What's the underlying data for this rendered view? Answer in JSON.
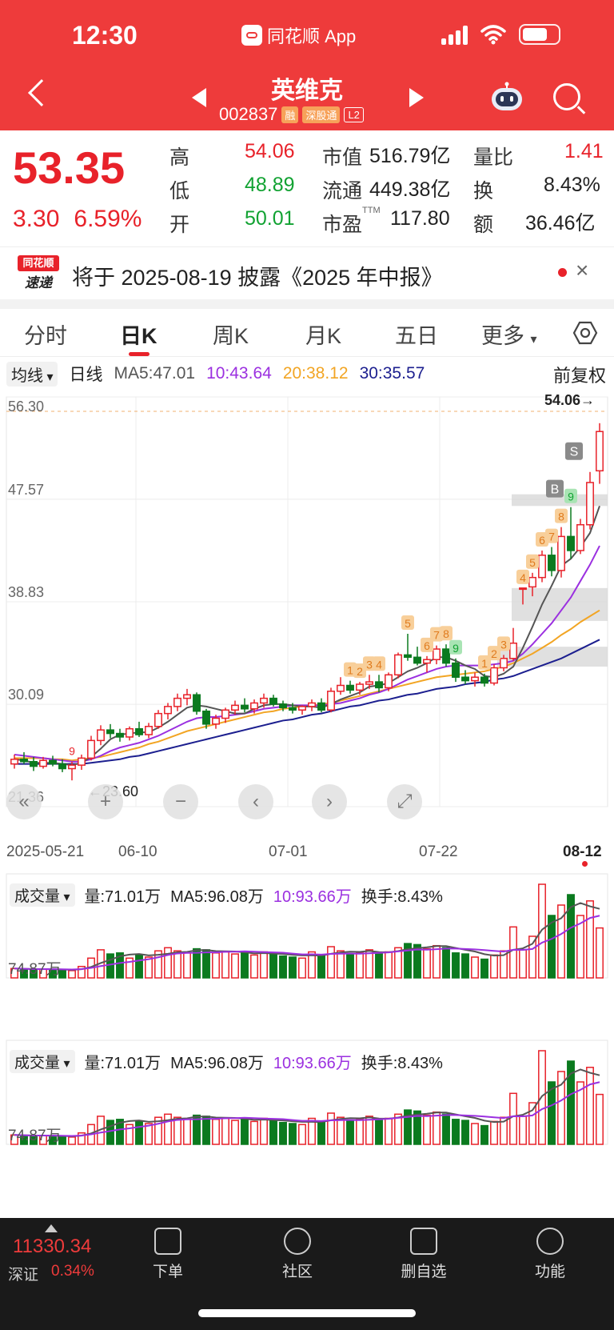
{
  "status_bar": {
    "time": "12:30",
    "app_name": "同花顺 App"
  },
  "header": {
    "stock_name": "英维克",
    "stock_code": "002837",
    "tags": [
      "融",
      "深股通",
      "L2"
    ]
  },
  "quote": {
    "price": "53.35",
    "change": "3.30",
    "change_pct": "6.59%",
    "high_label": "高",
    "high": "54.06",
    "low_label": "低",
    "low": "48.89",
    "open_label": "开",
    "open": "50.01",
    "mktcap_label": "市值",
    "mktcap": "516.79亿",
    "float_label": "流通",
    "float": "449.38亿",
    "pe_label": "市盈",
    "pe_sup": "TTM",
    "pe": "117.80",
    "volratio_label": "量比",
    "volratio": "1.41",
    "turnover_label": "换",
    "turnover": "8.43%",
    "amount_label": "额",
    "amount": "36.46亿"
  },
  "news": {
    "logo_top": "同花顺",
    "logo_bottom": "速递",
    "text": "将于 2025-08-19 披露《2025 年中报》",
    "close": "×"
  },
  "tabs": [
    "分时",
    "日K",
    "周K",
    "月K",
    "五日",
    "更多"
  ],
  "active_tab": "日K",
  "ma_row": {
    "dropdown": "均线",
    "period": "日线",
    "ma5": "MA5:47.01",
    "ma10": "10:43.64",
    "ma20": "20:38.12",
    "ma30": "30:35.57",
    "adjust": "前复权"
  },
  "colors": {
    "up": "#e8222a",
    "down": "#0b7a1f",
    "ma5": "#555555",
    "ma10": "#9b30e0",
    "ma20": "#f2a524",
    "ma30": "#1c1f8f"
  },
  "chart_data": {
    "type": "candlestick",
    "dates": [
      "2025-05-21",
      "06-10",
      "07-01",
      "07-22",
      "08-12"
    ],
    "y_ticks": [
      "56.30",
      "47.57",
      "38.83",
      "30.09",
      "21.36"
    ],
    "ylim": [
      21.36,
      56.3
    ],
    "high_label": "54.06→",
    "low_label": "←23.60",
    "ohlc": [
      [
        25.0,
        25.8,
        24.6,
        25.4
      ],
      [
        25.4,
        26.0,
        25.0,
        25.2
      ],
      [
        25.2,
        25.6,
        24.4,
        24.8
      ],
      [
        24.8,
        25.6,
        24.6,
        25.3
      ],
      [
        25.3,
        25.7,
        24.8,
        25.0
      ],
      [
        25.0,
        25.4,
        24.3,
        24.6
      ],
      [
        24.6,
        25.2,
        23.6,
        24.9
      ],
      [
        24.9,
        25.8,
        24.5,
        25.5
      ],
      [
        25.5,
        27.4,
        25.3,
        27.0
      ],
      [
        27.0,
        28.3,
        26.6,
        27.9
      ],
      [
        27.9,
        28.4,
        27.2,
        27.6
      ],
      [
        27.6,
        28.0,
        26.9,
        27.3
      ],
      [
        27.3,
        28.2,
        27.0,
        28.0
      ],
      [
        28.0,
        28.6,
        27.3,
        27.5
      ],
      [
        27.5,
        28.5,
        27.2,
        28.2
      ],
      [
        28.2,
        29.6,
        28.0,
        29.3
      ],
      [
        29.3,
        30.2,
        28.8,
        29.9
      ],
      [
        29.9,
        31.0,
        29.5,
        30.6
      ],
      [
        30.6,
        31.4,
        30.0,
        30.9
      ],
      [
        30.9,
        31.1,
        29.2,
        29.5
      ],
      [
        29.5,
        29.7,
        28.0,
        28.4
      ],
      [
        28.4,
        29.2,
        28.0,
        28.9
      ],
      [
        28.9,
        29.8,
        28.5,
        29.6
      ],
      [
        29.6,
        30.4,
        29.2,
        30.0
      ],
      [
        30.0,
        30.6,
        29.4,
        29.7
      ],
      [
        29.7,
        30.5,
        29.3,
        30.2
      ],
      [
        30.2,
        31.0,
        29.8,
        30.6
      ],
      [
        30.6,
        30.9,
        29.9,
        30.1
      ],
      [
        30.1,
        30.4,
        29.5,
        29.8
      ],
      [
        29.8,
        30.2,
        29.3,
        29.6
      ],
      [
        29.6,
        30.0,
        29.2,
        29.9
      ],
      [
        29.9,
        30.5,
        29.5,
        30.2
      ],
      [
        30.2,
        30.6,
        29.4,
        29.6
      ],
      [
        29.6,
        31.5,
        29.4,
        31.2
      ],
      [
        31.2,
        32.4,
        30.9,
        31.7
      ],
      [
        31.7,
        32.1,
        31.0,
        31.3
      ],
      [
        31.3,
        32.0,
        30.9,
        31.8
      ],
      [
        31.8,
        32.6,
        31.4,
        32.0
      ],
      [
        32.0,
        32.6,
        31.1,
        31.5
      ],
      [
        31.5,
        32.8,
        31.2,
        32.6
      ],
      [
        32.6,
        34.5,
        32.3,
        34.3
      ],
      [
        34.3,
        36.1,
        33.8,
        34.1
      ],
      [
        34.1,
        35.0,
        33.4,
        33.6
      ],
      [
        33.6,
        34.2,
        32.8,
        33.9
      ],
      [
        33.9,
        35.1,
        33.5,
        34.8
      ],
      [
        34.8,
        35.2,
        33.3,
        33.6
      ],
      [
        33.6,
        34.0,
        32.0,
        32.4
      ],
      [
        32.4,
        33.0,
        31.8,
        32.1
      ],
      [
        32.1,
        32.8,
        31.6,
        32.4
      ],
      [
        32.4,
        32.7,
        31.6,
        31.9
      ],
      [
        31.9,
        33.5,
        31.7,
        33.2
      ],
      [
        33.2,
        34.3,
        32.9,
        34.0
      ],
      [
        34.0,
        36.6,
        33.8,
        35.3
      ],
      [
        40.0,
        40.0,
        38.6,
        40.0
      ],
      [
        40.1,
        41.3,
        39.3,
        40.9
      ],
      [
        40.9,
        43.2,
        40.5,
        42.8
      ],
      [
        42.8,
        43.5,
        41.0,
        41.5
      ],
      [
        41.5,
        45.2,
        40.9,
        44.4
      ],
      [
        44.4,
        46.9,
        42.5,
        43.2
      ],
      [
        43.2,
        45.9,
        42.9,
        45.4
      ],
      [
        45.4,
        49.9,
        45.0,
        49.0
      ],
      [
        50.0,
        54.06,
        48.89,
        53.35
      ]
    ],
    "ma5": [
      25.4,
      25.3,
      25.1,
      25.1,
      25.1,
      25.0,
      24.9,
      25.1,
      25.6,
      26.3,
      27.1,
      27.5,
      27.6,
      27.7,
      27.7,
      28.1,
      28.6,
      29.2,
      29.8,
      30.0,
      29.9,
      29.7,
      29.5,
      29.3,
      29.3,
      29.7,
      30.0,
      30.1,
      30.1,
      30.0,
      29.9,
      29.9,
      29.8,
      30.1,
      30.5,
      30.8,
      31.1,
      31.6,
      31.7,
      31.9,
      32.4,
      32.9,
      33.2,
      33.6,
      34.1,
      34.1,
      33.8,
      33.4,
      33.1,
      32.5,
      32.4,
      32.7,
      33.3,
      34.9,
      36.7,
      38.6,
      40.2,
      41.9,
      42.5,
      43.5,
      44.7,
      47.0
    ],
    "ma10": [
      25.8,
      25.7,
      25.6,
      25.5,
      25.4,
      25.3,
      25.2,
      25.2,
      25.4,
      25.7,
      26.1,
      26.4,
      26.6,
      26.8,
      27.1,
      27.4,
      27.8,
      28.2,
      28.6,
      28.9,
      29.0,
      29.0,
      29.1,
      29.2,
      29.3,
      29.5,
      29.7,
      29.8,
      29.9,
      30.0,
      30.0,
      30.0,
      30.0,
      30.1,
      30.2,
      30.4,
      30.6,
      30.9,
      31.1,
      31.4,
      31.8,
      32.2,
      32.5,
      32.8,
      33.1,
      33.3,
      33.4,
      33.4,
      33.4,
      33.4,
      33.5,
      33.6,
      33.8,
      34.4,
      35.2,
      36.1,
      37.0,
      38.1,
      39.2,
      40.6,
      42.0,
      43.6
    ],
    "ma20": [
      25.5,
      25.5,
      25.5,
      25.5,
      25.4,
      25.4,
      25.3,
      25.4,
      25.5,
      25.6,
      25.8,
      26.0,
      26.2,
      26.4,
      26.7,
      26.9,
      27.2,
      27.5,
      27.8,
      28.0,
      28.2,
      28.4,
      28.6,
      28.8,
      29.0,
      29.2,
      29.4,
      29.5,
      29.7,
      29.8,
      29.9,
      30.0,
      30.1,
      30.2,
      30.4,
      30.6,
      30.8,
      31.0,
      31.2,
      31.4,
      31.6,
      31.8,
      32.0,
      32.2,
      32.4,
      32.5,
      32.6,
      32.7,
      32.8,
      32.9,
      33.1,
      33.3,
      33.6,
      34.0,
      34.4,
      34.9,
      35.4,
      36.0,
      36.5,
      37.1,
      37.6,
      38.1
    ],
    "ma30": [
      25.0,
      25.0,
      25.0,
      25.0,
      25.0,
      25.0,
      25.0,
      25.0,
      25.1,
      25.2,
      25.3,
      25.4,
      25.6,
      25.7,
      25.9,
      26.1,
      26.3,
      26.5,
      26.7,
      26.9,
      27.1,
      27.3,
      27.5,
      27.7,
      27.9,
      28.1,
      28.3,
      28.5,
      28.7,
      28.8,
      29.0,
      29.2,
      29.3,
      29.5,
      29.7,
      29.9,
      30.0,
      30.2,
      30.4,
      30.5,
      30.7,
      30.9,
      31.0,
      31.2,
      31.4,
      31.5,
      31.6,
      31.8,
      31.9,
      32.0,
      32.2,
      32.3,
      32.5,
      32.8,
      33.1,
      33.4,
      33.7,
      34.0,
      34.4,
      34.8,
      35.2,
      35.6
    ],
    "markers": [
      {
        "index": 6,
        "label": "9",
        "color": "#e8222a"
      },
      {
        "index": 35,
        "label": "1"
      },
      {
        "index": 36,
        "label": "2"
      },
      {
        "index": 37,
        "label": "3"
      },
      {
        "index": 38,
        "label": "4"
      },
      {
        "index": 41,
        "label": "5"
      },
      {
        "index": 43,
        "label": "6"
      },
      {
        "index": 44,
        "label": "7"
      },
      {
        "index": 45,
        "label": "8"
      },
      {
        "index": 46,
        "label": "9",
        "color": "#11a232"
      },
      {
        "index": 49,
        "label": "1"
      },
      {
        "index": 50,
        "label": "2"
      },
      {
        "index": 51,
        "label": "3"
      },
      {
        "index": 53,
        "label": "4"
      },
      {
        "index": 54,
        "label": "5"
      },
      {
        "index": 55,
        "label": "6"
      },
      {
        "index": 56,
        "label": "7"
      },
      {
        "index": 57,
        "label": "8"
      },
      {
        "index": 58,
        "label": "9",
        "color": "#11a232"
      }
    ],
    "signals": [
      {
        "index": 57,
        "label": "B"
      },
      {
        "index": 58,
        "label": "S"
      }
    ],
    "volume": [
      18,
      17,
      16,
      17,
      16,
      15,
      14,
      22,
      38,
      54,
      46,
      48,
      38,
      44,
      40,
      52,
      58,
      52,
      48,
      56,
      54,
      48,
      50,
      46,
      48,
      44,
      50,
      46,
      42,
      40,
      38,
      50,
      44,
      60,
      52,
      46,
      48,
      54,
      48,
      50,
      58,
      66,
      64,
      56,
      62,
      58,
      48,
      46,
      40,
      36,
      44,
      52,
      98,
      54,
      80,
      180,
      120,
      140,
      160,
      120,
      148,
      96
    ],
    "volume_labels": {
      "dropdown": "成交量",
      "vol": "量:71.01万",
      "ma5": "MA5:96.08万",
      "ma10": "10:93.66万",
      "turnover": "换手:8.43%",
      "axis": "74.87万"
    }
  },
  "controls": [
    "«",
    "+",
    "−",
    "‹",
    "›",
    "⤢"
  ],
  "bottom_bar": {
    "index_value": "11330.34",
    "index_name": "深证",
    "index_pct": "0.34%",
    "nav": [
      "下单",
      "社区",
      "删自选",
      "功能"
    ]
  }
}
